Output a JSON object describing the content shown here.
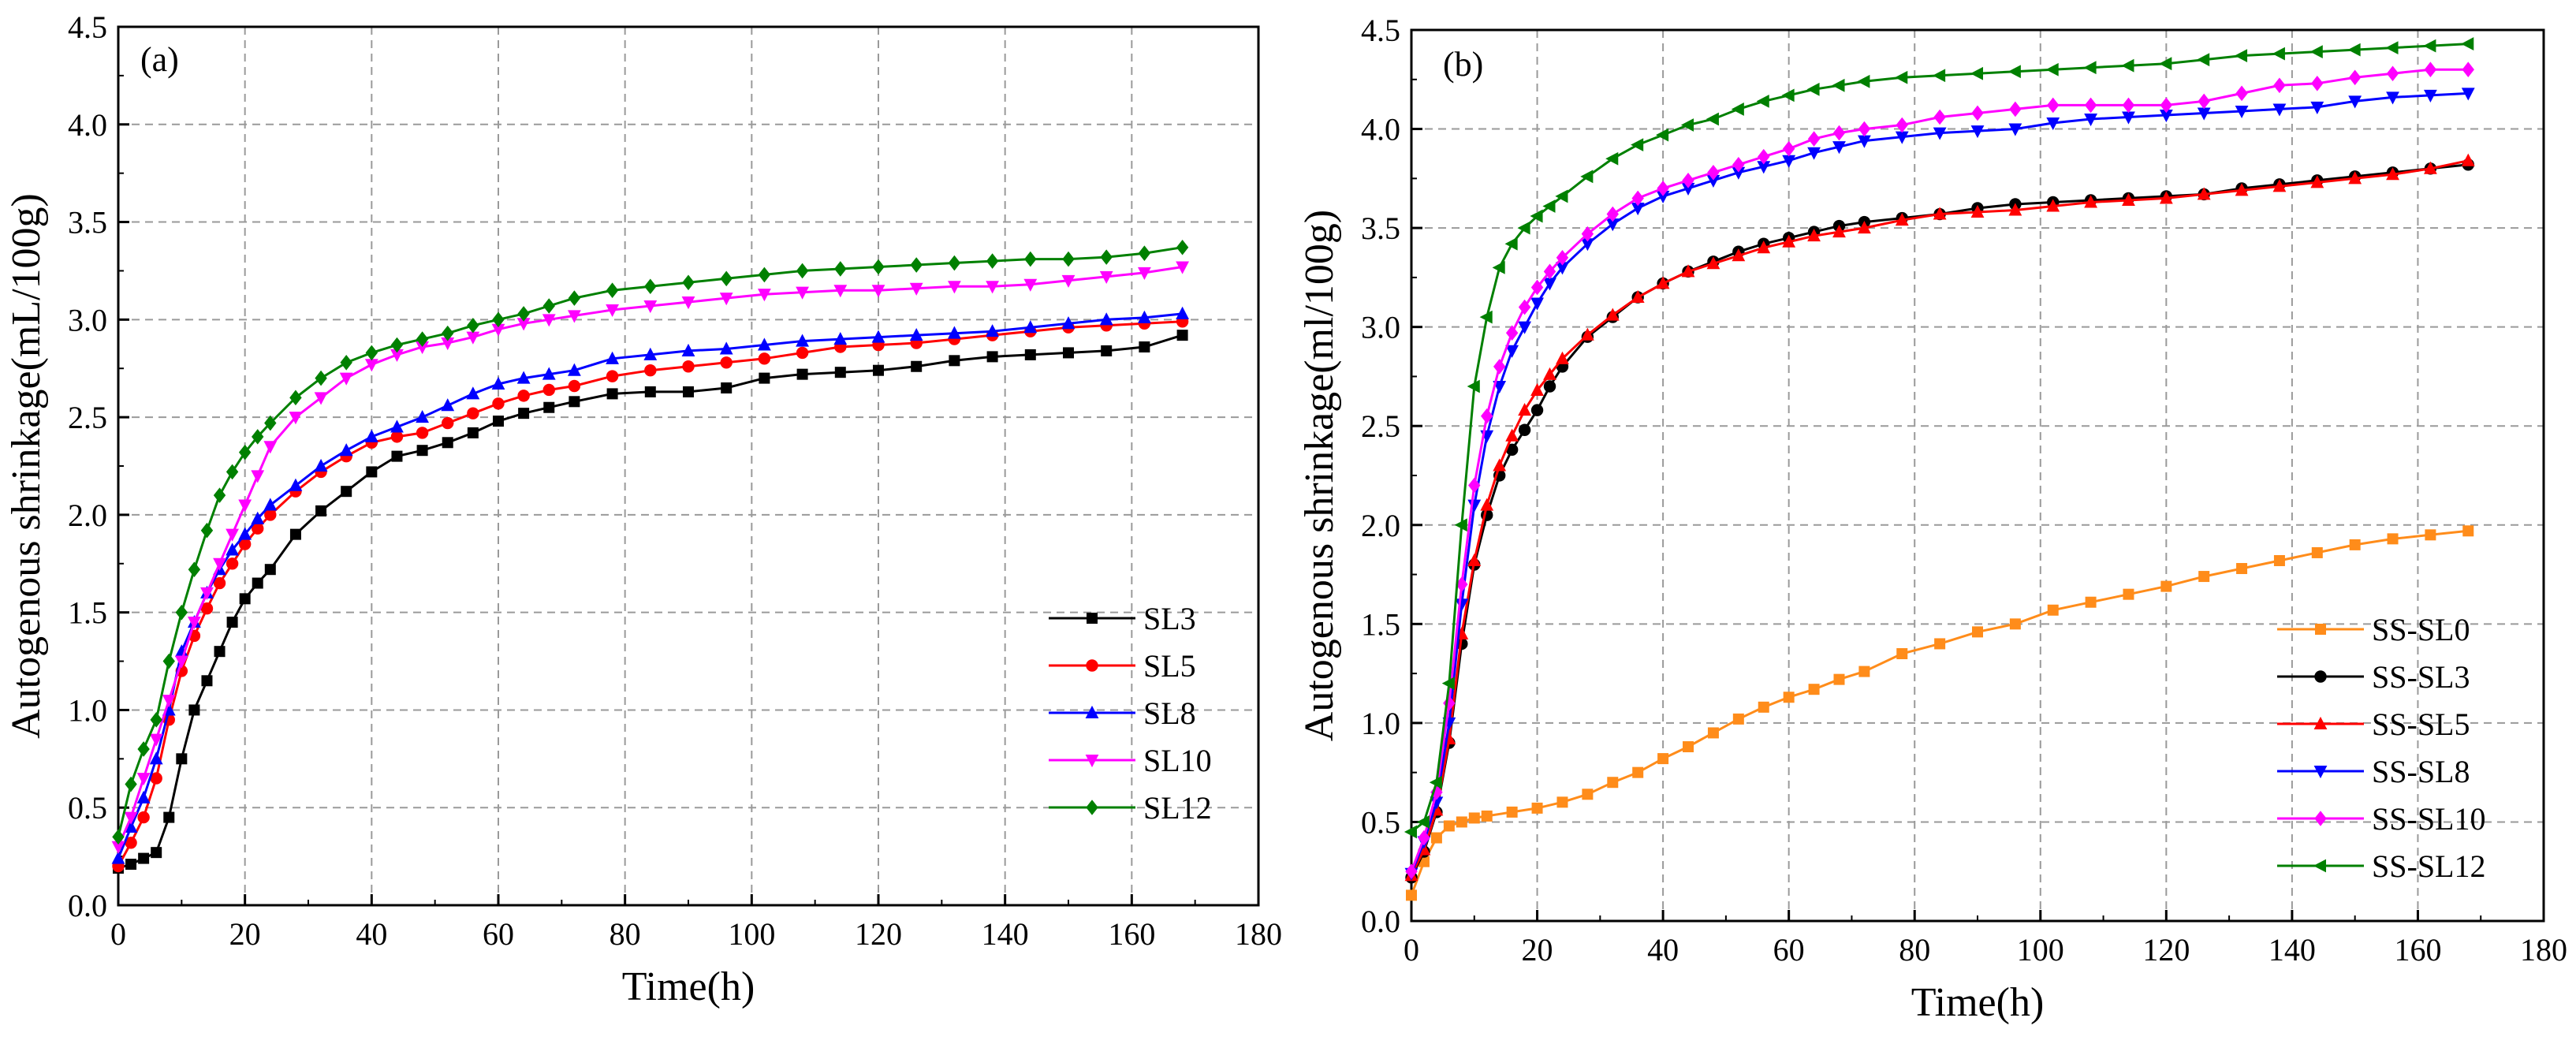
{
  "chart_data": [
    {
      "type": "line",
      "panel_label": "(a)",
      "xlabel": "Time(h)",
      "ylabel": "Autogenous shrinkage(mL/100g)",
      "xlim": [
        0,
        180
      ],
      "ylim": [
        0,
        4.5
      ],
      "xticks": [
        "0",
        "20",
        "40",
        "60",
        "80",
        "100",
        "120",
        "140",
        "160",
        "180"
      ],
      "yticks": [
        "0.0",
        "0.5",
        "1.0",
        "1.5",
        "2.0",
        "2.5",
        "3.0",
        "3.5",
        "4.0",
        "4.5"
      ],
      "grid": true,
      "legend_position": "center-right",
      "series": [
        {
          "name": "SL3",
          "color": "#000000",
          "marker": "square",
          "x": [
            0,
            2,
            4,
            6,
            8,
            10,
            12,
            14,
            16,
            18,
            20,
            22,
            24,
            28,
            32,
            36,
            40,
            44,
            48,
            52,
            56,
            60,
            64,
            68,
            72,
            78,
            84,
            90,
            96,
            102,
            108,
            114,
            120,
            126,
            132,
            138,
            144,
            150,
            156,
            162,
            168
          ],
          "y": [
            0.19,
            0.21,
            0.24,
            0.27,
            0.45,
            0.75,
            1.0,
            1.15,
            1.3,
            1.45,
            1.57,
            1.65,
            1.72,
            1.9,
            2.02,
            2.12,
            2.22,
            2.3,
            2.33,
            2.37,
            2.42,
            2.48,
            2.52,
            2.55,
            2.58,
            2.62,
            2.63,
            2.63,
            2.65,
            2.7,
            2.72,
            2.73,
            2.74,
            2.76,
            2.79,
            2.81,
            2.82,
            2.83,
            2.84,
            2.86,
            2.92
          ]
        },
        {
          "name": "SL5",
          "color": "#ff0000",
          "marker": "circle",
          "x": [
            0,
            2,
            4,
            6,
            8,
            10,
            12,
            14,
            16,
            18,
            20,
            22,
            24,
            28,
            32,
            36,
            40,
            44,
            48,
            52,
            56,
            60,
            64,
            68,
            72,
            78,
            84,
            90,
            96,
            102,
            108,
            114,
            120,
            126,
            132,
            138,
            144,
            150,
            156,
            162,
            168
          ],
          "y": [
            0.2,
            0.32,
            0.45,
            0.65,
            0.95,
            1.2,
            1.38,
            1.52,
            1.65,
            1.75,
            1.85,
            1.93,
            2.0,
            2.12,
            2.22,
            2.3,
            2.37,
            2.4,
            2.42,
            2.47,
            2.52,
            2.57,
            2.61,
            2.64,
            2.66,
            2.71,
            2.74,
            2.76,
            2.78,
            2.8,
            2.83,
            2.86,
            2.87,
            2.88,
            2.9,
            2.92,
            2.94,
            2.96,
            2.97,
            2.98,
            2.99
          ]
        },
        {
          "name": "SL8",
          "color": "#0000ff",
          "marker": "triangle-up",
          "x": [
            0,
            2,
            4,
            6,
            8,
            10,
            12,
            14,
            16,
            18,
            20,
            22,
            24,
            28,
            32,
            36,
            40,
            44,
            48,
            52,
            56,
            60,
            64,
            68,
            72,
            78,
            84,
            90,
            96,
            102,
            108,
            114,
            120,
            126,
            132,
            138,
            144,
            150,
            156,
            162,
            168
          ],
          "y": [
            0.24,
            0.4,
            0.55,
            0.75,
            1.0,
            1.3,
            1.45,
            1.6,
            1.72,
            1.82,
            1.9,
            1.98,
            2.05,
            2.15,
            2.25,
            2.33,
            2.4,
            2.45,
            2.5,
            2.56,
            2.62,
            2.67,
            2.7,
            2.72,
            2.74,
            2.8,
            2.82,
            2.84,
            2.85,
            2.87,
            2.89,
            2.9,
            2.91,
            2.92,
            2.93,
            2.94,
            2.96,
            2.98,
            3.0,
            3.01,
            3.03
          ]
        },
        {
          "name": "SL10",
          "color": "#ff00ff",
          "marker": "triangle-down",
          "x": [
            0,
            2,
            4,
            6,
            8,
            10,
            12,
            14,
            16,
            18,
            20,
            22,
            24,
            28,
            32,
            36,
            40,
            44,
            48,
            52,
            56,
            60,
            64,
            68,
            72,
            78,
            84,
            90,
            96,
            102,
            108,
            114,
            120,
            126,
            132,
            138,
            144,
            150,
            156,
            162,
            168
          ],
          "y": [
            0.3,
            0.45,
            0.65,
            0.85,
            1.05,
            1.25,
            1.45,
            1.6,
            1.75,
            1.9,
            2.05,
            2.2,
            2.35,
            2.5,
            2.6,
            2.7,
            2.77,
            2.82,
            2.86,
            2.88,
            2.91,
            2.95,
            2.98,
            3.0,
            3.02,
            3.05,
            3.07,
            3.09,
            3.11,
            3.13,
            3.14,
            3.15,
            3.15,
            3.16,
            3.17,
            3.17,
            3.18,
            3.2,
            3.22,
            3.24,
            3.27
          ]
        },
        {
          "name": "SL12",
          "color": "#008000",
          "marker": "diamond",
          "x": [
            0,
            2,
            4,
            6,
            8,
            10,
            12,
            14,
            16,
            18,
            20,
            22,
            24,
            28,
            32,
            36,
            40,
            44,
            48,
            52,
            56,
            60,
            64,
            68,
            72,
            78,
            84,
            90,
            96,
            102,
            108,
            114,
            120,
            126,
            132,
            138,
            144,
            150,
            156,
            162,
            168
          ],
          "y": [
            0.35,
            0.62,
            0.8,
            0.95,
            1.25,
            1.5,
            1.72,
            1.92,
            2.1,
            2.22,
            2.32,
            2.4,
            2.47,
            2.6,
            2.7,
            2.78,
            2.83,
            2.87,
            2.9,
            2.93,
            2.97,
            3.0,
            3.03,
            3.07,
            3.11,
            3.15,
            3.17,
            3.19,
            3.21,
            3.23,
            3.25,
            3.26,
            3.27,
            3.28,
            3.29,
            3.3,
            3.31,
            3.31,
            3.32,
            3.34,
            3.37
          ]
        }
      ]
    },
    {
      "type": "line",
      "panel_label": "(b)",
      "xlabel": "Time(h)",
      "ylabel": "Autogenous shrinkage(ml/100g)",
      "xlim": [
        0,
        180
      ],
      "ylim": [
        0,
        4.5
      ],
      "xticks": [
        "0",
        "20",
        "40",
        "60",
        "80",
        "100",
        "120",
        "140",
        "160",
        "180"
      ],
      "yticks": [
        "0.0",
        "0.5",
        "1.0",
        "1.5",
        "2.0",
        "2.5",
        "3.0",
        "3.5",
        "4.0",
        "4.5"
      ],
      "grid": true,
      "legend_position": "bottom-right",
      "series": [
        {
          "name": "SS-SL0",
          "color": "#ff8c1a",
          "marker": "square",
          "x": [
            0,
            2,
            4,
            6,
            8,
            10,
            12,
            16,
            20,
            24,
            28,
            32,
            36,
            40,
            44,
            48,
            52,
            56,
            60,
            64,
            68,
            72,
            78,
            84,
            90,
            96,
            102,
            108,
            114,
            120,
            126,
            132,
            138,
            144,
            150,
            156,
            162,
            168
          ],
          "y": [
            0.13,
            0.3,
            0.42,
            0.48,
            0.5,
            0.52,
            0.53,
            0.55,
            0.57,
            0.6,
            0.64,
            0.7,
            0.75,
            0.82,
            0.88,
            0.95,
            1.02,
            1.08,
            1.13,
            1.17,
            1.22,
            1.26,
            1.35,
            1.4,
            1.46,
            1.5,
            1.57,
            1.61,
            1.65,
            1.69,
            1.74,
            1.78,
            1.82,
            1.86,
            1.9,
            1.93,
            1.95,
            1.97
          ]
        },
        {
          "name": "SS-SL3",
          "color": "#000000",
          "marker": "circle",
          "x": [
            0,
            2,
            4,
            6,
            8,
            10,
            12,
            14,
            16,
            18,
            20,
            22,
            24,
            28,
            32,
            36,
            40,
            44,
            48,
            52,
            56,
            60,
            64,
            68,
            72,
            78,
            84,
            90,
            96,
            102,
            108,
            114,
            120,
            126,
            132,
            138,
            144,
            150,
            156,
            162,
            168
          ],
          "y": [
            0.22,
            0.35,
            0.55,
            0.9,
            1.4,
            1.8,
            2.05,
            2.25,
            2.38,
            2.48,
            2.58,
            2.7,
            2.8,
            2.95,
            3.05,
            3.15,
            3.22,
            3.28,
            3.33,
            3.38,
            3.42,
            3.45,
            3.48,
            3.51,
            3.53,
            3.55,
            3.57,
            3.6,
            3.62,
            3.63,
            3.64,
            3.65,
            3.66,
            3.67,
            3.7,
            3.72,
            3.74,
            3.76,
            3.78,
            3.8,
            3.82
          ]
        },
        {
          "name": "SS-SL5",
          "color": "#ff0000",
          "marker": "triangle-up",
          "x": [
            0,
            2,
            4,
            6,
            8,
            10,
            12,
            14,
            16,
            18,
            20,
            22,
            24,
            28,
            32,
            36,
            40,
            44,
            48,
            52,
            56,
            60,
            64,
            68,
            72,
            78,
            84,
            90,
            96,
            102,
            108,
            114,
            120,
            126,
            132,
            138,
            144,
            150,
            156,
            162,
            168
          ],
          "y": [
            0.23,
            0.36,
            0.56,
            0.92,
            1.45,
            1.82,
            2.1,
            2.3,
            2.45,
            2.58,
            2.68,
            2.76,
            2.84,
            2.96,
            3.06,
            3.15,
            3.22,
            3.28,
            3.32,
            3.36,
            3.4,
            3.43,
            3.46,
            3.48,
            3.5,
            3.54,
            3.57,
            3.58,
            3.59,
            3.61,
            3.63,
            3.64,
            3.65,
            3.67,
            3.69,
            3.71,
            3.73,
            3.75,
            3.77,
            3.8,
            3.84
          ]
        },
        {
          "name": "SS-SL8",
          "color": "#0000ff",
          "marker": "triangle-down",
          "x": [
            0,
            2,
            4,
            6,
            8,
            10,
            12,
            14,
            16,
            18,
            20,
            22,
            24,
            28,
            32,
            36,
            40,
            44,
            48,
            52,
            56,
            60,
            64,
            68,
            72,
            78,
            84,
            90,
            96,
            102,
            108,
            114,
            120,
            126,
            132,
            138,
            144,
            150,
            156,
            162,
            168
          ],
          "y": [
            0.24,
            0.4,
            0.6,
            1.0,
            1.6,
            2.1,
            2.45,
            2.7,
            2.88,
            3.0,
            3.12,
            3.22,
            3.3,
            3.42,
            3.52,
            3.6,
            3.66,
            3.7,
            3.74,
            3.78,
            3.81,
            3.84,
            3.88,
            3.91,
            3.94,
            3.96,
            3.98,
            3.99,
            4.0,
            4.03,
            4.05,
            4.06,
            4.07,
            4.08,
            4.09,
            4.1,
            4.11,
            4.14,
            4.16,
            4.17,
            4.18
          ]
        },
        {
          "name": "SS-SL10",
          "color": "#ff00ff",
          "marker": "diamond",
          "x": [
            0,
            2,
            4,
            6,
            8,
            10,
            12,
            14,
            16,
            18,
            20,
            22,
            24,
            28,
            32,
            36,
            40,
            44,
            48,
            52,
            56,
            60,
            64,
            68,
            72,
            78,
            84,
            90,
            96,
            102,
            108,
            114,
            120,
            126,
            132,
            138,
            144,
            150,
            156,
            162,
            168
          ],
          "y": [
            0.25,
            0.42,
            0.65,
            1.1,
            1.7,
            2.2,
            2.55,
            2.8,
            2.97,
            3.1,
            3.2,
            3.28,
            3.35,
            3.47,
            3.57,
            3.65,
            3.7,
            3.74,
            3.78,
            3.82,
            3.86,
            3.9,
            3.95,
            3.98,
            4.0,
            4.02,
            4.06,
            4.08,
            4.1,
            4.12,
            4.12,
            4.12,
            4.12,
            4.14,
            4.18,
            4.22,
            4.23,
            4.26,
            4.28,
            4.3,
            4.3
          ]
        },
        {
          "name": "SS-SL12",
          "color": "#008000",
          "marker": "triangle-left",
          "x": [
            0,
            2,
            4,
            6,
            8,
            10,
            12,
            14,
            16,
            18,
            20,
            22,
            24,
            28,
            32,
            36,
            40,
            44,
            48,
            52,
            56,
            60,
            64,
            68,
            72,
            78,
            84,
            90,
            96,
            102,
            108,
            114,
            120,
            126,
            132,
            138,
            144,
            150,
            156,
            162,
            168
          ],
          "y": [
            0.45,
            0.5,
            0.7,
            1.2,
            2.0,
            2.7,
            3.05,
            3.3,
            3.42,
            3.5,
            3.56,
            3.61,
            3.66,
            3.76,
            3.85,
            3.92,
            3.97,
            4.02,
            4.05,
            4.1,
            4.14,
            4.17,
            4.2,
            4.22,
            4.24,
            4.26,
            4.27,
            4.28,
            4.29,
            4.3,
            4.31,
            4.32,
            4.33,
            4.35,
            4.37,
            4.38,
            4.39,
            4.4,
            4.41,
            4.42,
            4.43
          ]
        }
      ]
    }
  ]
}
